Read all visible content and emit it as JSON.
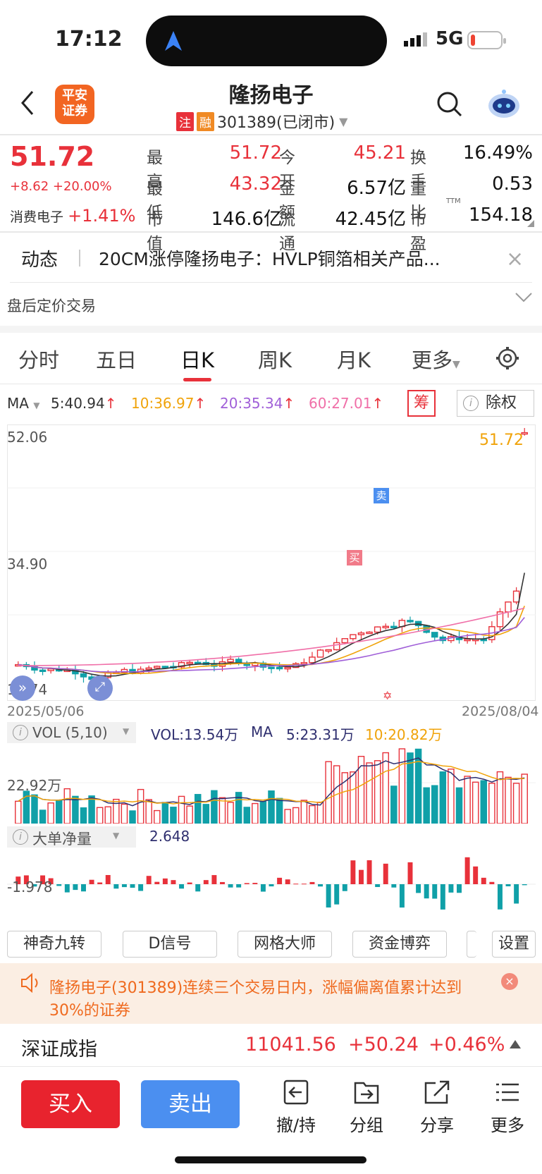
{
  "status": {
    "time": "17:12",
    "network": "5G"
  },
  "header": {
    "logo": "平安\n证券",
    "title": "隆扬电子",
    "tag1": "注",
    "tag2": "融",
    "code": "301389(已闭市)"
  },
  "quote": {
    "price": "51.72",
    "change": "+8.62 +20.00%",
    "sector_name": "消费电子",
    "sector_change": "+1.41%",
    "rows": [
      [
        {
          "label": "最高",
          "value": "51.72",
          "color": "red"
        },
        {
          "label": "今开",
          "value": "45.21",
          "color": "red"
        },
        {
          "label": "换手",
          "value": "16.49%",
          "color": "black"
        }
      ],
      [
        {
          "label": "最低",
          "value": "43.32",
          "color": "red"
        },
        {
          "label": "金额",
          "value": "6.57亿",
          "color": "black"
        },
        {
          "label": "量比",
          "value": "0.53",
          "color": "black"
        }
      ],
      [
        {
          "label": "市值",
          "value": "146.6亿",
          "color": "black"
        },
        {
          "label": "流通",
          "value": "42.45亿",
          "color": "black"
        },
        {
          "label": "市盈",
          "value": "154.18",
          "color": "black"
        }
      ]
    ],
    "pe_mark": "TTM"
  },
  "news": {
    "label": "动态",
    "text": "20CM涨停隆扬电子：HVLP铜箔相关产品...",
    "close": "×"
  },
  "after_hours": "盘后定价交易",
  "tabs": [
    "分时",
    "五日",
    "日K",
    "周K",
    "月K",
    "更多"
  ],
  "ma": {
    "label": "MA",
    "items": [
      {
        "text": "5:40.94",
        "color": "#333"
      },
      {
        "text": "10:36.97",
        "color": "#f0a30a"
      },
      {
        "text": "20:35.34",
        "color": "#a05fd8"
      },
      {
        "text": "60:27.01",
        "color": "#f06fa8"
      }
    ],
    "chou": "筹",
    "chuquan": "除权"
  },
  "kline": {
    "high_label": "52.06",
    "mid_label": "34.90",
    "low_label": "17.74",
    "last_label": "51.72",
    "start_date": "2025/05/06",
    "end_date": "2025/08/04",
    "buy_mark": "买",
    "sell_mark": "卖"
  },
  "vol": {
    "selector": "VOL (5,10)",
    "vol": "VOL:13.54万",
    "ma_label": "MA",
    "ma5": "5:23.31万",
    "ma10": "10:20.82万",
    "axis": "22.92万"
  },
  "bigorder": {
    "selector": "大单净量",
    "value": "2.648",
    "axis": "-1.978"
  },
  "chart_buttons": [
    "神奇九转",
    "D信号",
    "网格大师",
    "资金博弈",
    "设置"
  ],
  "alert": {
    "text": "隆扬电子(301389)连续三个交易日内，涨幅偏离值累计达到30%的证券"
  },
  "index": {
    "name": "深证成指",
    "value": "11041.56",
    "change": "+50.24",
    "pct": "+0.46%"
  },
  "bottom": {
    "buy": "买入",
    "sell": "卖出",
    "tools": [
      {
        "label": "撤/持",
        "icon": "withdraw-icon"
      },
      {
        "label": "分组",
        "icon": "group-icon"
      },
      {
        "label": "分享",
        "icon": "share-icon"
      },
      {
        "label": "更多",
        "icon": "menu-icon"
      }
    ]
  },
  "colors": {
    "up": "#e8313a",
    "down": "#10a0a8",
    "ma5": "#333333",
    "ma10": "#f0a30a",
    "ma20": "#a05fd8",
    "ma60": "#f06fa8"
  }
}
